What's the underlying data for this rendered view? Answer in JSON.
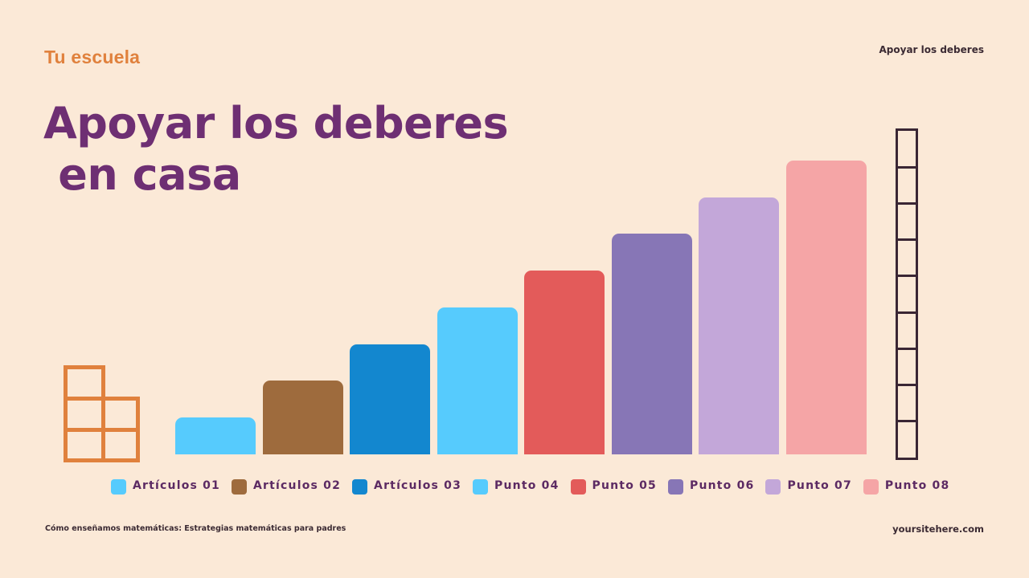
{
  "header": {
    "brand": "Tu escuela",
    "top_right": "Apoyar los deberes"
  },
  "title": {
    "text": "Apoyar los deberes\n en casa"
  },
  "footer": {
    "left": "Cómo enseñamos matemáticas: Estrategias matemáticas para padres",
    "right": "yoursitehere.com"
  },
  "colors": {
    "background": "#fbe9d7",
    "brand": "#e0813d",
    "title": "#6e2f73",
    "legend_text": "#5c2a63",
    "ruler": "#3a2634"
  },
  "chart_data": {
    "type": "bar",
    "title": "Apoyar los deberes en casa",
    "xlabel": "",
    "ylabel": "",
    "categories": [
      "Artículos 01",
      "Artículos 02",
      "Artículos 03",
      "Punto 04",
      "Punto 05",
      "Punto 06",
      "Punto 07",
      "Punto 08"
    ],
    "values": [
      1,
      2,
      3,
      4,
      5,
      6,
      7,
      8
    ],
    "colors": [
      "#56cbfd",
      "#9e6b3d",
      "#1387cf",
      "#56cbfd",
      "#e35b5a",
      "#8776b6",
      "#c3a7d9",
      "#f5a5a6"
    ],
    "ylim": [
      0,
      9
    ],
    "grid": false,
    "legend_position": "bottom",
    "axes_visible": false
  },
  "legend": [
    {
      "label": "Artículos 01",
      "color": "#56cbfd"
    },
    {
      "label": "Artículos 02",
      "color": "#9e6b3d"
    },
    {
      "label": "Artículos 03",
      "color": "#1387cf"
    },
    {
      "label": "Punto 04",
      "color": "#56cbfd"
    },
    {
      "label": "Punto 05",
      "color": "#e35b5a"
    },
    {
      "label": "Punto 06",
      "color": "#8776b6"
    },
    {
      "label": "Punto 07",
      "color": "#c3a7d9"
    },
    {
      "label": "Punto 08",
      "color": "#f5a5a6"
    }
  ],
  "decorations": {
    "blocks_icon": "stacked-blocks-icon",
    "ruler_icon": "measuring-column-icon",
    "ruler_segments": 9
  }
}
